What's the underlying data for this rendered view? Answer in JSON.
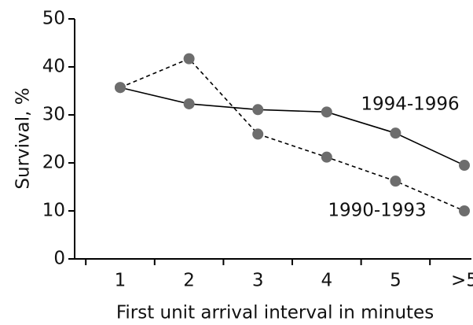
{
  "chart_data": {
    "type": "line",
    "x_label": "First unit arrival interval in minutes",
    "y_label": "Survival, %",
    "categories": [
      "1",
      "2",
      "3",
      "4",
      "5",
      ">5"
    ],
    "series": [
      {
        "name": "1994-1996",
        "color": "#000000",
        "marker_color": "#6d6d6d",
        "line_style": "solid",
        "values": [
          35.7,
          32.3,
          31.1,
          30.6,
          26.2,
          19.5
        ]
      },
      {
        "name": "1990-1993",
        "color": "#000000",
        "marker_color": "#6d6d6d",
        "line_style": "dashed",
        "values": [
          35.7,
          41.7,
          26,
          21.2,
          16.2,
          10
        ]
      }
    ],
    "ylim": [
      0,
      50
    ],
    "yticks": [
      0,
      10,
      20,
      30,
      40,
      50
    ],
    "grid": false
  }
}
